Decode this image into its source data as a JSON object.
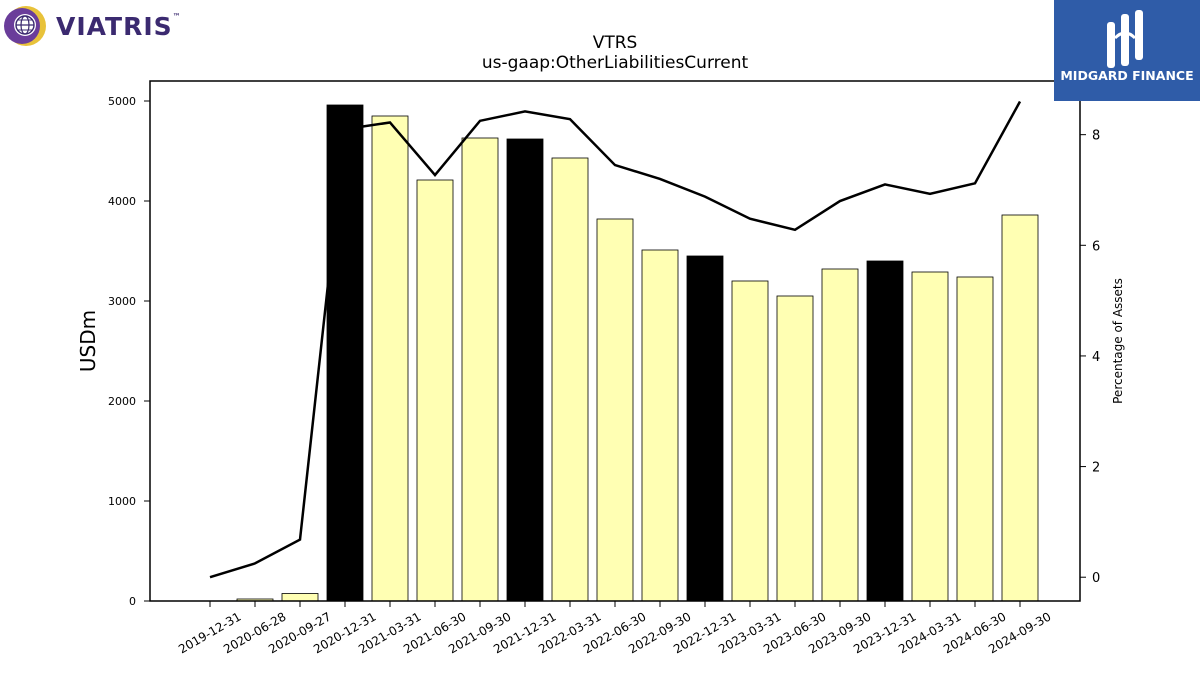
{
  "logos": {
    "left_text": "VIATRIS",
    "left_tm": "™",
    "right_text": "MIDGARD FINANCE"
  },
  "chart_data": {
    "type": "bar",
    "title": "VTRS",
    "subtitle": "us-gaap:OtherLiabilitiesCurrent",
    "ylabel": "USDm",
    "y2label": "Percentage of Assets",
    "categories": [
      "2019-12-31",
      "2020-06-28",
      "2020-09-27",
      "2020-12-31",
      "2021-03-31",
      "2021-06-30",
      "2021-09-30",
      "2021-12-31",
      "2022-03-31",
      "2022-06-30",
      "2022-09-30",
      "2022-12-31",
      "2023-03-31",
      "2023-06-30",
      "2023-09-30",
      "2023-12-31",
      "2024-03-31",
      "2024-06-30",
      "2024-09-30"
    ],
    "series": [
      {
        "type": "bar",
        "values": [
          0,
          20,
          75,
          4960,
          4850,
          4210,
          4630,
          4620,
          4430,
          3820,
          3510,
          3450,
          3200,
          3050,
          3320,
          3400,
          3290,
          3240,
          3860
        ],
        "annual": [
          true,
          false,
          false,
          true,
          false,
          false,
          false,
          true,
          false,
          false,
          false,
          true,
          false,
          false,
          false,
          true,
          false,
          false,
          false
        ],
        "colors": {
          "annual": "#000000",
          "quarter": "#ffffb3"
        }
      },
      {
        "type": "line",
        "axis": "right",
        "values": [
          0.0,
          0.25,
          0.68,
          8.1,
          8.22,
          7.27,
          8.25,
          8.42,
          8.28,
          7.45,
          7.2,
          6.88,
          6.48,
          6.28,
          6.8,
          7.1,
          6.93,
          7.12,
          8.6
        ],
        "color": "#000000"
      }
    ],
    "ylim": [
      0,
      5200
    ],
    "y2lim": [
      -0.43,
      8.97
    ],
    "yticks": [
      0,
      1000,
      2000,
      3000,
      4000,
      5000
    ],
    "y2ticks": [
      0,
      2,
      4,
      6,
      8
    ],
    "legend": "none",
    "grid": false
  }
}
